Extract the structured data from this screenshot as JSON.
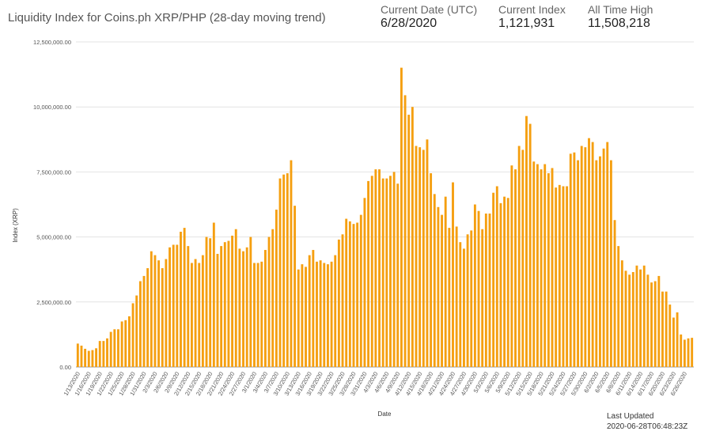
{
  "header": {
    "title": "Liquidity Index for Coins.ph XRP/PHP (28-day moving trend)",
    "current_date_label": "Current Date (UTC)",
    "current_date_value": "6/28/2020",
    "current_index_label": "Current Index",
    "current_index_value": "1,121,931",
    "ath_label": "All Time High",
    "ath_value": "11,508,218"
  },
  "footer": {
    "updated_label": "Last Updated",
    "updated_value": "2020-06-28T06:48:23Z"
  },
  "colors": {
    "bar": "#f59f10",
    "grid": "#e3e3e3"
  },
  "chart_data": {
    "type": "bar",
    "xlabel": "Date",
    "ylabel": "Index (XRP)",
    "ylim": [
      0,
      12500000
    ],
    "yticks": [
      "0.00",
      "2,500,000.00",
      "5,000,000.00",
      "7,500,000.00",
      "10,000,000.00",
      "12,500,000.00"
    ],
    "ytick_values": [
      0,
      2500000,
      5000000,
      7500000,
      10000000,
      12500000
    ],
    "x_tick_labels": [
      "1/13/2020",
      "1/16/2020",
      "1/19/2020",
      "1/22/2020",
      "1/25/2020",
      "1/28/2020",
      "1/31/2020",
      "2/3/2020",
      "2/6/2020",
      "2/9/2020",
      "2/12/2020",
      "2/15/2020",
      "2/18/2020",
      "2/21/2020",
      "2/24/2020",
      "2/27/2020",
      "3/1/2020",
      "3/4/2020",
      "3/7/2020",
      "3/10/2020",
      "3/13/2020",
      "3/16/2020",
      "3/19/2020",
      "3/22/2020",
      "3/25/2020",
      "3/28/2020",
      "3/31/2020",
      "4/3/2020",
      "4/6/2020",
      "4/9/2020",
      "4/12/2020",
      "4/15/2020",
      "4/18/2020",
      "4/21/2020",
      "4/24/2020",
      "4/27/2020",
      "4/30/2020",
      "5/3/2020",
      "5/6/2020",
      "5/9/2020",
      "5/12/2020",
      "5/15/2020",
      "5/18/2020",
      "5/21/2020",
      "5/24/2020",
      "5/27/2020",
      "5/30/2020",
      "6/2/2020",
      "6/5/2020",
      "6/8/2020",
      "6/11/2020",
      "6/14/2020",
      "6/17/2020",
      "6/20/2020",
      "6/23/2020",
      "6/26/2020"
    ],
    "start_date": "1/13/2020",
    "tick_every": 3,
    "values": [
      900000,
      820000,
      700000,
      620000,
      650000,
      720000,
      1000000,
      1000000,
      1100000,
      1350000,
      1450000,
      1450000,
      1750000,
      1800000,
      1950000,
      2450000,
      2750000,
      3300000,
      3500000,
      3800000,
      4450000,
      4300000,
      4100000,
      3800000,
      4150000,
      4600000,
      4700000,
      4700000,
      5200000,
      5350000,
      4650000,
      4000000,
      4150000,
      4000000,
      4300000,
      5000000,
      4950000,
      5550000,
      4350000,
      4650000,
      4800000,
      4850000,
      5050000,
      5300000,
      4550000,
      4450000,
      4600000,
      5000000,
      4000000,
      4000000,
      4050000,
      4500000,
      5000000,
      5300000,
      6050000,
      7250000,
      7400000,
      7450000,
      7950000,
      6200000,
      3750000,
      3950000,
      3850000,
      4300000,
      4500000,
      4050000,
      4100000,
      4000000,
      3950000,
      4050000,
      4300000,
      4900000,
      5100000,
      5700000,
      5600000,
      5500000,
      5550000,
      5850000,
      6500000,
      7150000,
      7350000,
      7600000,
      7600000,
      7250000,
      7250000,
      7350000,
      7500000,
      7050000,
      11508218,
      10450000,
      9700000,
      10000000,
      8500000,
      8450000,
      8350000,
      8750000,
      7450000,
      6650000,
      6150000,
      5850000,
      6550000,
      5350000,
      7100000,
      5400000,
      4800000,
      4550000,
      5100000,
      5250000,
      6250000,
      6000000,
      5300000,
      5900000,
      5900000,
      6700000,
      6950000,
      6300000,
      6550000,
      6500000,
      7750000,
      7600000,
      8500000,
      8350000,
      9650000,
      9350000,
      7900000,
      7800000,
      7600000,
      7800000,
      7450000,
      7650000,
      6900000,
      7000000,
      6950000,
      6950000,
      8200000,
      8250000,
      7950000,
      8500000,
      8450000,
      8800000,
      8650000,
      7950000,
      8100000,
      8400000,
      8650000,
      7950000,
      5650000,
      4650000,
      4100000,
      3700000,
      3550000,
      3650000,
      3900000,
      3750000,
      3900000,
      3550000,
      3250000,
      3300000,
      3500000,
      2900000,
      2900000,
      2400000,
      1900000,
      2100000,
      1250000,
      1050000,
      1100000,
      1121931
    ]
  }
}
